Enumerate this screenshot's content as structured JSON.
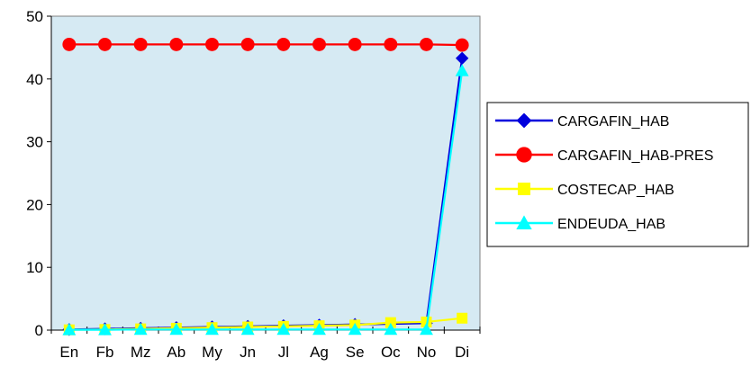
{
  "chart_data": {
    "type": "line",
    "title": "",
    "xlabel": "",
    "ylabel": "",
    "categories": [
      "En",
      "Fb",
      "Mz",
      "Ab",
      "My",
      "Jn",
      "Jl",
      "Ag",
      "Se",
      "Oc",
      "No",
      "Di"
    ],
    "ylim": [
      0,
      50
    ],
    "yticks": [
      0,
      10,
      20,
      30,
      40,
      50
    ],
    "grid": false,
    "plot_background": "#d6eaf3",
    "legend_position": "right",
    "series": [
      {
        "name": "CARGAFIN_HAB",
        "color": "#0000dd",
        "marker": "diamond",
        "values": [
          0.1,
          0.2,
          0.3,
          0.4,
          0.5,
          0.6,
          0.7,
          0.8,
          0.9,
          1.0,
          1.1,
          43.3
        ]
      },
      {
        "name": "CARGAFIN_HAB-PRES",
        "color": "#ff0000",
        "marker": "circle",
        "values": [
          45.5,
          45.5,
          45.5,
          45.5,
          45.5,
          45.5,
          45.5,
          45.5,
          45.5,
          45.5,
          45.5,
          45.4
        ]
      },
      {
        "name": "COSTECAP_HAB",
        "color": "#ffff00",
        "marker": "square",
        "values": [
          0.05,
          0.1,
          0.2,
          0.3,
          0.4,
          0.5,
          0.6,
          0.7,
          0.8,
          1.2,
          1.3,
          1.9
        ]
      },
      {
        "name": "ENDEUDA_HAB",
        "color": "#00ffff",
        "marker": "triangle",
        "values": [
          0.05,
          0.05,
          0.1,
          0.1,
          0.1,
          0.1,
          0.1,
          0.1,
          0.1,
          0.1,
          0.1,
          41.3
        ]
      }
    ]
  }
}
